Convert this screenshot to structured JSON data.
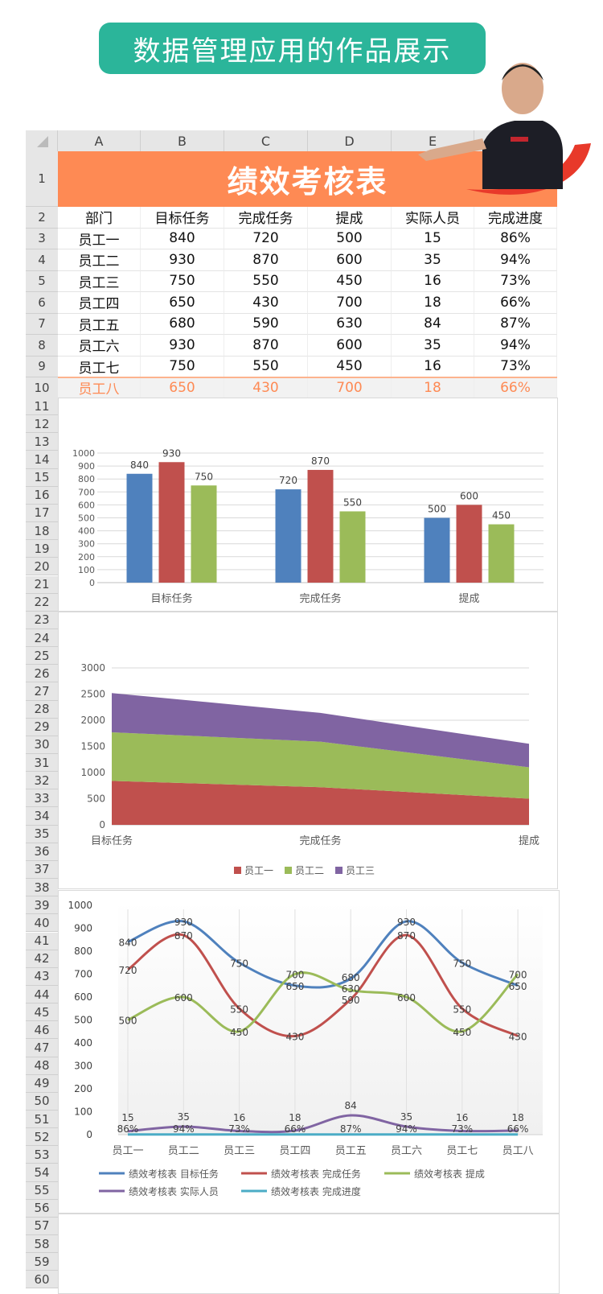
{
  "banner": {
    "title": "数据管理应用的作品展示"
  },
  "sheet": {
    "columns": [
      "A",
      "B",
      "C",
      "D",
      "E",
      "F"
    ],
    "title": "绩效考核表",
    "headers": [
      "部门",
      "目标任务",
      "完成任务",
      "提成",
      "实际人员",
      "完成进度"
    ],
    "rows": [
      [
        "员工一",
        "840",
        "720",
        "500",
        "15",
        "86%"
      ],
      [
        "员工二",
        "930",
        "870",
        "600",
        "35",
        "94%"
      ],
      [
        "员工三",
        "750",
        "550",
        "450",
        "16",
        "73%"
      ],
      [
        "员工四",
        "650",
        "430",
        "700",
        "18",
        "66%"
      ],
      [
        "员工五",
        "680",
        "590",
        "630",
        "84",
        "87%"
      ],
      [
        "员工六",
        "930",
        "870",
        "600",
        "35",
        "94%"
      ],
      [
        "员工七",
        "750",
        "550",
        "450",
        "16",
        "73%"
      ],
      [
        "员工八",
        "650",
        "430",
        "700",
        "18",
        "66%"
      ]
    ],
    "highlight_color": "#fe8a54"
  },
  "chart_data": [
    {
      "type": "bar",
      "categories": [
        "目标任务",
        "完成任务",
        "提成"
      ],
      "series": [
        {
          "name": "员工一",
          "values": [
            840,
            720,
            500
          ],
          "color": "#4f81bd"
        },
        {
          "name": "员工二",
          "values": [
            930,
            870,
            600
          ],
          "color": "#c0504d"
        },
        {
          "name": "员工三",
          "values": [
            750,
            550,
            450
          ],
          "color": "#9bbb59"
        }
      ],
      "ylim": [
        0,
        1000
      ],
      "yticks": [
        0,
        100,
        200,
        300,
        400,
        500,
        600,
        700,
        800,
        900,
        1000
      ],
      "grid": true,
      "data_labels": true
    },
    {
      "type": "area",
      "stacked": true,
      "categories": [
        "目标任务",
        "完成任务",
        "提成"
      ],
      "series": [
        {
          "name": "员工一",
          "values": [
            840,
            720,
            500
          ],
          "color": "#c0504d"
        },
        {
          "name": "员工二",
          "values": [
            930,
            870,
            600
          ],
          "color": "#9bbb59"
        },
        {
          "name": "员工三",
          "values": [
            750,
            550,
            450
          ],
          "color": "#8064a2"
        }
      ],
      "ylim": [
        0,
        3000
      ],
      "yticks": [
        0,
        500,
        1000,
        1500,
        2000,
        2500,
        3000
      ],
      "grid": true,
      "legend": "bottom"
    },
    {
      "type": "line",
      "smooth": true,
      "categories": [
        "员工一",
        "员工二",
        "员工三",
        "员工四",
        "员工五",
        "员工六",
        "员工七",
        "员工八"
      ],
      "series": [
        {
          "name": "绩效考核表 目标任务",
          "values": [
            840,
            930,
            750,
            650,
            680,
            930,
            750,
            650
          ],
          "labels": [
            "840",
            "930",
            "750",
            "650",
            "680",
            "930",
            "750",
            "650"
          ],
          "color": "#4f81bd"
        },
        {
          "name": "绩效考核表 完成任务",
          "values": [
            720,
            870,
            550,
            430,
            590,
            870,
            550,
            430
          ],
          "labels": [
            "720",
            "870",
            "550",
            "430",
            "590",
            "870",
            "550",
            "430"
          ],
          "color": "#c0504d"
        },
        {
          "name": "绩效考核表 提成",
          "values": [
            500,
            600,
            450,
            700,
            630,
            600,
            450,
            700
          ],
          "labels": [
            "500",
            "600",
            "450",
            "700",
            "630",
            "600",
            "450",
            "700"
          ],
          "color": "#9bbb59"
        },
        {
          "name": "绩效考核表 实际人员",
          "values": [
            15,
            35,
            16,
            18,
            84,
            35,
            16,
            18
          ],
          "labels": [
            "15",
            "35",
            "16",
            "18",
            "84",
            "35",
            "16",
            "18"
          ],
          "color": "#8064a2"
        },
        {
          "name": "绩效考核表 完成进度",
          "values": [
            0.86,
            0.94,
            0.73,
            0.66,
            0.87,
            0.94,
            0.73,
            0.66
          ],
          "labels": [
            "86%",
            "94%",
            "73%",
            "66%",
            "87%",
            "94%",
            "73%",
            "66%"
          ],
          "color": "#4bacc6"
        }
      ],
      "ylim": [
        0,
        1000
      ],
      "yticks": [
        0,
        100,
        200,
        300,
        400,
        500,
        600,
        700,
        800,
        900,
        1000
      ],
      "legend": "bottom"
    }
  ]
}
